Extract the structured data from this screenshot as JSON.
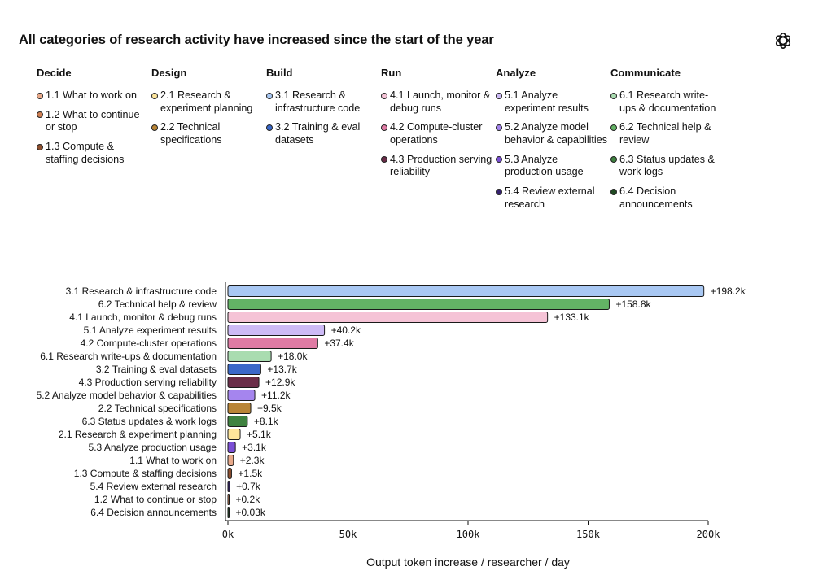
{
  "title": "All categories of research activity have increased since the start of the year",
  "logo_icon": "openai-logo-icon",
  "legend": [
    {
      "name": "Decide",
      "items": [
        {
          "label": "1.1 What to work on",
          "color": "#e8a98a"
        },
        {
          "label": "1.2 What to continue or stop",
          "color": "#cf7f52"
        },
        {
          "label": "1.3 Compute & staffing decisions",
          "color": "#8e4f2f"
        }
      ]
    },
    {
      "name": "Design",
      "items": [
        {
          "label": "2.1 Research & experiment planning",
          "color": "#fde59b"
        },
        {
          "label": "2.2 Technical specifications",
          "color": "#b98536"
        }
      ]
    },
    {
      "name": "Build",
      "items": [
        {
          "label": "3.1 Research & infrastructure code",
          "color": "#a9c8f3"
        },
        {
          "label": "3.2 Training & eval datasets",
          "color": "#3a68c9"
        }
      ]
    },
    {
      "name": "Run",
      "items": [
        {
          "label": "4.1 Launch, monitor & debug runs",
          "color": "#f5c3d6"
        },
        {
          "label": "4.2 Compute-cluster operations",
          "color": "#df7ba4"
        },
        {
          "label": "4.3 Production serving reliability",
          "color": "#6a2d48"
        }
      ]
    },
    {
      "name": "Analyze",
      "items": [
        {
          "label": "5.1 Analyze experiment results",
          "color": "#cdbaf6"
        },
        {
          "label": "5.2 Analyze model behavior & capabilities",
          "color": "#a585ee"
        },
        {
          "label": "5.3 Analyze production usage",
          "color": "#7b4fd6"
        },
        {
          "label": "5.4 Review external research",
          "color": "#35226e"
        }
      ]
    },
    {
      "name": "Communicate",
      "items": [
        {
          "label": "6.1 Research write-ups & documentation",
          "color": "#a9dcb0"
        },
        {
          "label": "6.2 Technical help & review",
          "color": "#63b365"
        },
        {
          "label": "6.3 Status updates & work logs",
          "color": "#3f8240"
        },
        {
          "label": "6.4 Decision announcements",
          "color": "#1f4a22"
        }
      ]
    }
  ],
  "chart_data": {
    "type": "bar",
    "orientation": "horizontal",
    "xlabel": "Output token increase / researcher / day",
    "xlim": [
      0,
      200000
    ],
    "xticks": [
      0,
      50000,
      100000,
      150000,
      200000
    ],
    "xtick_labels": [
      "0k",
      "50k",
      "100k",
      "150k",
      "200k"
    ],
    "grid": false,
    "bars": [
      {
        "category": "3.1 Research & infrastructure code",
        "value": 198200,
        "label": "+198.2k",
        "color": "#a9c8f3"
      },
      {
        "category": "6.2 Technical help & review",
        "value": 158800,
        "label": "+158.8k",
        "color": "#63b365"
      },
      {
        "category": "4.1 Launch, monitor & debug runs",
        "value": 133100,
        "label": "+133.1k",
        "color": "#f5c3d6"
      },
      {
        "category": "5.1 Analyze experiment results",
        "value": 40200,
        "label": "+40.2k",
        "color": "#cdbaf6"
      },
      {
        "category": "4.2 Compute-cluster operations",
        "value": 37400,
        "label": "+37.4k",
        "color": "#df7ba4"
      },
      {
        "category": "6.1 Research write-ups & documentation",
        "value": 18000,
        "label": "+18.0k",
        "color": "#a9dcb0"
      },
      {
        "category": "3.2 Training & eval datasets",
        "value": 13700,
        "label": "+13.7k",
        "color": "#3a68c9"
      },
      {
        "category": "4.3 Production serving reliability",
        "value": 12900,
        "label": "+12.9k",
        "color": "#6a2d48"
      },
      {
        "category": "5.2 Analyze model behavior & capabilities",
        "value": 11200,
        "label": "+11.2k",
        "color": "#a585ee"
      },
      {
        "category": "2.2 Technical specifications",
        "value": 9500,
        "label": "+9.5k",
        "color": "#b98536"
      },
      {
        "category": "6.3 Status updates & work logs",
        "value": 8100,
        "label": "+8.1k",
        "color": "#3f8240"
      },
      {
        "category": "2.1 Research & experiment planning",
        "value": 5100,
        "label": "+5.1k",
        "color": "#fde59b"
      },
      {
        "category": "5.3 Analyze production usage",
        "value": 3100,
        "label": "+3.1k",
        "color": "#7b4fd6"
      },
      {
        "category": "1.1 What to work on",
        "value": 2300,
        "label": "+2.3k",
        "color": "#e8a98a"
      },
      {
        "category": "1.3 Compute & staffing decisions",
        "value": 1500,
        "label": "+1.5k",
        "color": "#8e4f2f"
      },
      {
        "category": "5.4 Review external research",
        "value": 700,
        "label": "+0.7k",
        "color": "#35226e"
      },
      {
        "category": "1.2 What to continue or stop",
        "value": 200,
        "label": "+0.2k",
        "color": "#cf7f52"
      },
      {
        "category": "6.4 Decision announcements",
        "value": 30,
        "label": "+0.03k",
        "color": "#1f4a22"
      }
    ]
  }
}
